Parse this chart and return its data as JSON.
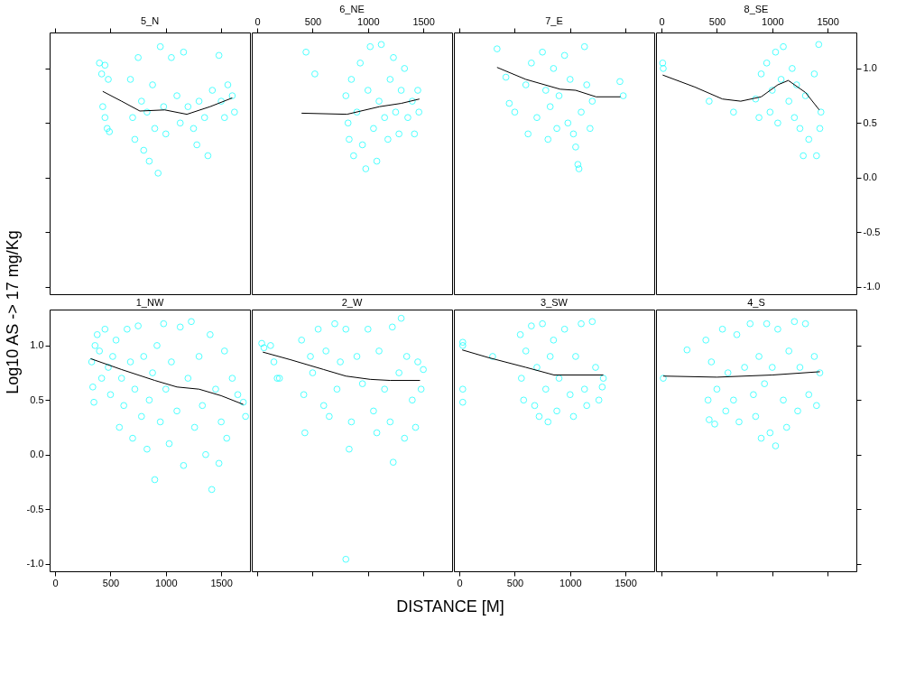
{
  "chart_data": [
    {
      "type": "scatter",
      "title": "5_N",
      "tick_labels": false,
      "xlim": [
        -50,
        1760
      ],
      "ylim": [
        -1.07,
        1.33
      ],
      "xticks": [
        0,
        500,
        1000,
        1500
      ],
      "yticks": [
        -1.0,
        -0.5,
        0.0,
        0.5,
        1.0
      ],
      "series": [
        {
          "type": "scatter",
          "marker": "circle",
          "color": "#00ffff",
          "x": [
            400,
            420,
            450,
            480,
            430,
            450,
            470,
            490,
            680,
            700,
            720,
            750,
            780,
            800,
            830,
            850,
            880,
            900,
            930,
            950,
            980,
            1000,
            1050,
            1100,
            1130,
            1160,
            1200,
            1250,
            1280,
            1300,
            1350,
            1380,
            1420,
            1480,
            1500,
            1530,
            1560,
            1600,
            1620
          ],
          "values": [
            1.05,
            0.95,
            1.03,
            0.9,
            0.65,
            0.55,
            0.45,
            0.42,
            0.9,
            0.55,
            0.35,
            1.1,
            0.7,
            0.25,
            0.6,
            0.15,
            0.85,
            0.45,
            0.04,
            1.2,
            0.65,
            0.4,
            1.1,
            0.75,
            0.5,
            1.15,
            0.65,
            0.45,
            0.3,
            0.7,
            0.55,
            0.2,
            0.8,
            1.12,
            0.7,
            0.55,
            0.85,
            0.75,
            0.6
          ]
        },
        {
          "type": "line",
          "marker": "none",
          "color": "#000000",
          "x": [
            430,
            600,
            765,
            990,
            1190,
            1400,
            1600
          ],
          "values": [
            0.79,
            0.7,
            0.61,
            0.62,
            0.58,
            0.65,
            0.73
          ]
        }
      ]
    },
    {
      "type": "scatter",
      "title": "6_NE",
      "tick_labels": "x",
      "xlim": [
        -50,
        1760
      ],
      "ylim": [
        -1.07,
        1.33
      ],
      "xticks": [
        0,
        500,
        1000,
        1500
      ],
      "series": [
        {
          "type": "scatter",
          "marker": "circle",
          "color": "#00ffff",
          "x": [
            440,
            520,
            800,
            820,
            830,
            850,
            870,
            900,
            930,
            950,
            980,
            1000,
            1020,
            1050,
            1080,
            1100,
            1120,
            1150,
            1180,
            1200,
            1230,
            1250,
            1280,
            1300,
            1330,
            1360,
            1400,
            1420,
            1450,
            1460
          ],
          "values": [
            1.15,
            0.95,
            0.75,
            0.5,
            0.35,
            0.9,
            0.2,
            0.6,
            1.05,
            0.3,
            0.08,
            0.8,
            1.2,
            0.45,
            0.15,
            0.7,
            1.22,
            0.55,
            0.35,
            0.9,
            1.1,
            0.6,
            0.4,
            0.8,
            1.0,
            0.55,
            0.7,
            0.4,
            0.8,
            0.6
          ]
        },
        {
          "type": "line",
          "marker": "none",
          "color": "#000000",
          "x": [
            400,
            810,
            1105,
            1300,
            1465
          ],
          "values": [
            0.59,
            0.58,
            0.65,
            0.68,
            0.72
          ]
        }
      ]
    },
    {
      "type": "scatter",
      "title": "7_E",
      "tick_labels": false,
      "xlim": [
        -50,
        1760
      ],
      "ylim": [
        -1.07,
        1.33
      ],
      "xticks": [
        0,
        500,
        1000,
        1500
      ],
      "series": [
        {
          "type": "scatter",
          "marker": "circle",
          "color": "#00ffff",
          "x": [
            340,
            420,
            450,
            500,
            600,
            620,
            650,
            700,
            750,
            780,
            800,
            820,
            850,
            880,
            900,
            950,
            980,
            1000,
            1030,
            1050,
            1070,
            1080,
            1100,
            1130,
            1150,
            1180,
            1200,
            1450,
            1480
          ],
          "values": [
            1.18,
            0.92,
            0.68,
            0.6,
            0.85,
            0.4,
            1.05,
            0.55,
            1.15,
            0.8,
            0.35,
            0.65,
            1.0,
            0.45,
            0.75,
            1.12,
            0.5,
            0.9,
            0.4,
            0.28,
            0.12,
            0.08,
            0.6,
            1.2,
            0.85,
            0.45,
            0.7,
            0.88,
            0.75
          ]
        },
        {
          "type": "line",
          "marker": "none",
          "color": "#000000",
          "x": [
            340,
            600,
            910,
            1050,
            1235,
            1455
          ],
          "values": [
            1.01,
            0.9,
            0.81,
            0.8,
            0.74,
            0.74
          ]
        }
      ]
    },
    {
      "type": "scatter",
      "title": "8_SE",
      "xlim": [
        -50,
        1760
      ],
      "ylim": [
        -1.07,
        1.33
      ],
      "xticks": [
        0,
        500,
        1000,
        1500
      ],
      "yticks": [
        {
          "value": -1.0,
          "label": "-1.0"
        },
        {
          "value": -0.5,
          "label": "-0.5"
        },
        {
          "value": 0.0,
          "label": "0.0"
        },
        {
          "value": 0.5,
          "label": "0.5"
        },
        {
          "value": 1.0,
          "label": "1.0"
        }
      ],
      "series": [
        {
          "type": "scatter",
          "marker": "circle",
          "color": "#00ffff",
          "x": [
            10,
            15,
            430,
            650,
            850,
            880,
            900,
            950,
            980,
            1000,
            1030,
            1050,
            1080,
            1100,
            1150,
            1180,
            1200,
            1220,
            1250,
            1280,
            1300,
            1330,
            1380,
            1400,
            1420,
            1430,
            1440
          ],
          "values": [
            1.05,
            1.0,
            0.7,
            0.6,
            0.72,
            0.55,
            0.95,
            1.05,
            0.6,
            0.8,
            1.15,
            0.5,
            0.9,
            1.2,
            0.7,
            1.0,
            0.55,
            0.85,
            0.45,
            0.2,
            0.75,
            0.35,
            0.95,
            0.2,
            1.22,
            0.45,
            0.6
          ]
        },
        {
          "type": "line",
          "marker": "none",
          "color": "#000000",
          "x": [
            10,
            300,
            550,
            715,
            900,
            1050,
            1145,
            1300,
            1425
          ],
          "values": [
            0.94,
            0.83,
            0.72,
            0.7,
            0.74,
            0.85,
            0.89,
            0.78,
            0.62
          ]
        }
      ]
    },
    {
      "type": "scatter",
      "title": "1_NW",
      "ylabel": "Log10 AS -> 17 mg/Kg",
      "xlim": [
        -50,
        1760
      ],
      "ylim": [
        -1.07,
        1.33
      ],
      "xticks": [
        0,
        500,
        1000,
        1500
      ],
      "yticks": [
        {
          "value": -1.0,
          "label": "-1.0"
        },
        {
          "value": -0.5,
          "label": "-0.5"
        },
        {
          "value": 0.0,
          "label": "0.0"
        },
        {
          "value": 0.5,
          "label": "0.5"
        },
        {
          "value": 1.0,
          "label": "1.0"
        }
      ],
      "series": [
        {
          "type": "scatter",
          "marker": "circle",
          "color": "#00ffff",
          "x": [
            330,
            340,
            350,
            360,
            380,
            400,
            420,
            450,
            480,
            500,
            520,
            550,
            580,
            600,
            620,
            650,
            680,
            700,
            720,
            750,
            780,
            800,
            830,
            850,
            880,
            900,
            920,
            950,
            980,
            1000,
            1030,
            1050,
            1100,
            1130,
            1160,
            1200,
            1230,
            1260,
            1300,
            1330,
            1360,
            1400,
            1415,
            1450,
            1480,
            1500,
            1530,
            1550,
            1600,
            1650,
            1700,
            1720
          ],
          "values": [
            0.85,
            0.62,
            0.48,
            1.0,
            1.1,
            0.95,
            0.7,
            1.15,
            0.8,
            0.55,
            0.9,
            1.05,
            0.25,
            0.7,
            0.45,
            1.15,
            0.85,
            0.15,
            0.6,
            1.18,
            0.35,
            0.9,
            0.05,
            0.5,
            0.75,
            -0.23,
            1.0,
            0.3,
            1.2,
            0.6,
            0.1,
            0.85,
            0.4,
            1.17,
            -0.1,
            0.7,
            1.22,
            0.25,
            0.9,
            0.45,
            0.0,
            1.1,
            -0.32,
            0.6,
            -0.08,
            0.3,
            0.95,
            0.15,
            0.7,
            0.55,
            0.48,
            0.35
          ]
        },
        {
          "type": "line",
          "marker": "none",
          "color": "#000000",
          "x": [
            320,
            600,
            900,
            1100,
            1300,
            1500,
            1700
          ],
          "values": [
            0.88,
            0.78,
            0.68,
            0.62,
            0.6,
            0.54,
            0.46
          ]
        }
      ]
    },
    {
      "type": "scatter",
      "title": "2_W",
      "xlabel": "DISTANCE [M]",
      "tick_labels": false,
      "xlim": [
        -50,
        1760
      ],
      "ylim": [
        -1.07,
        1.33
      ],
      "xticks": [
        0,
        500,
        1000,
        1500
      ],
      "series": [
        {
          "type": "scatter",
          "marker": "circle",
          "color": "#00ffff",
          "x": [
            40,
            60,
            120,
            150,
            180,
            200,
            400,
            420,
            430,
            480,
            500,
            550,
            600,
            620,
            650,
            700,
            720,
            750,
            800,
            800,
            830,
            850,
            900,
            950,
            1000,
            1050,
            1080,
            1100,
            1150,
            1200,
            1220,
            1228,
            1280,
            1300,
            1330,
            1350,
            1400,
            1430,
            1450,
            1480,
            1500
          ],
          "values": [
            1.02,
            0.98,
            1.0,
            0.85,
            0.7,
            0.7,
            1.05,
            0.55,
            0.2,
            0.9,
            0.75,
            1.15,
            0.45,
            0.95,
            0.35,
            1.2,
            0.6,
            0.85,
            1.15,
            -0.96,
            0.05,
            0.3,
            0.9,
            0.65,
            1.15,
            0.4,
            0.2,
            0.95,
            0.6,
            0.3,
            1.17,
            -0.07,
            0.75,
            1.25,
            0.15,
            0.9,
            0.5,
            0.25,
            0.85,
            0.6,
            0.78
          ]
        },
        {
          "type": "line",
          "marker": "none",
          "color": "#000000",
          "x": [
            50,
            300,
            600,
            800,
            1020,
            1200,
            1470
          ],
          "values": [
            0.94,
            0.87,
            0.78,
            0.72,
            0.69,
            0.68,
            0.68
          ]
        }
      ]
    },
    {
      "type": "scatter",
      "title": "3_SW",
      "tick_labels": "x",
      "xlim": [
        -50,
        1760
      ],
      "ylim": [
        -1.07,
        1.33
      ],
      "xticks": [
        0,
        500,
        1000,
        1500
      ],
      "series": [
        {
          "type": "scatter",
          "marker": "circle",
          "color": "#00ffff",
          "x": [
            30,
            30,
            30,
            30,
            300,
            550,
            560,
            580,
            600,
            650,
            680,
            700,
            720,
            750,
            780,
            800,
            820,
            850,
            880,
            900,
            950,
            1000,
            1030,
            1050,
            1100,
            1130,
            1150,
            1200,
            1230,
            1260,
            1300,
            1290
          ],
          "values": [
            1.03,
            1.0,
            0.6,
            0.48,
            0.9,
            1.1,
            0.7,
            0.5,
            0.95,
            1.18,
            0.45,
            0.8,
            0.35,
            1.2,
            0.6,
            0.3,
            0.9,
            1.05,
            0.4,
            0.7,
            1.15,
            0.55,
            0.35,
            0.9,
            1.2,
            0.6,
            0.45,
            1.22,
            0.8,
            0.5,
            0.7,
            0.62
          ]
        },
        {
          "type": "line",
          "marker": "none",
          "color": "#000000",
          "x": [
            25,
            260,
            600,
            855,
            1300
          ],
          "values": [
            0.96,
            0.89,
            0.8,
            0.73,
            0.73
          ]
        }
      ]
    },
    {
      "type": "scatter",
      "title": "4_S",
      "tick_labels": false,
      "xlim": [
        -50,
        1760
      ],
      "ylim": [
        -1.07,
        1.33
      ],
      "xticks": [
        0,
        500,
        1000,
        1500
      ],
      "yticks": [
        -1.0,
        -0.5,
        0.0,
        0.5,
        1.0
      ],
      "series": [
        {
          "type": "scatter",
          "marker": "circle",
          "color": "#00ffff",
          "x": [
            15,
            230,
            400,
            420,
            430,
            450,
            480,
            500,
            550,
            580,
            600,
            650,
            680,
            700,
            750,
            800,
            830,
            850,
            880,
            900,
            930,
            950,
            980,
            1000,
            1030,
            1050,
            1100,
            1130,
            1150,
            1200,
            1230,
            1250,
            1300,
            1330,
            1380,
            1400,
            1430
          ],
          "values": [
            0.7,
            0.96,
            1.05,
            0.5,
            0.32,
            0.85,
            0.28,
            0.6,
            1.15,
            0.4,
            0.75,
            0.5,
            1.1,
            0.3,
            0.8,
            1.2,
            0.55,
            0.35,
            0.9,
            0.15,
            0.65,
            1.2,
            0.2,
            0.8,
            0.08,
            1.15,
            0.5,
            0.25,
            0.95,
            1.22,
            0.4,
            0.8,
            1.2,
            0.55,
            0.9,
            0.45,
            0.75
          ]
        },
        {
          "type": "line",
          "marker": "none",
          "color": "#000000",
          "x": [
            15,
            500,
            1000,
            1430
          ],
          "values": [
            0.72,
            0.71,
            0.73,
            0.76
          ]
        }
      ]
    }
  ]
}
